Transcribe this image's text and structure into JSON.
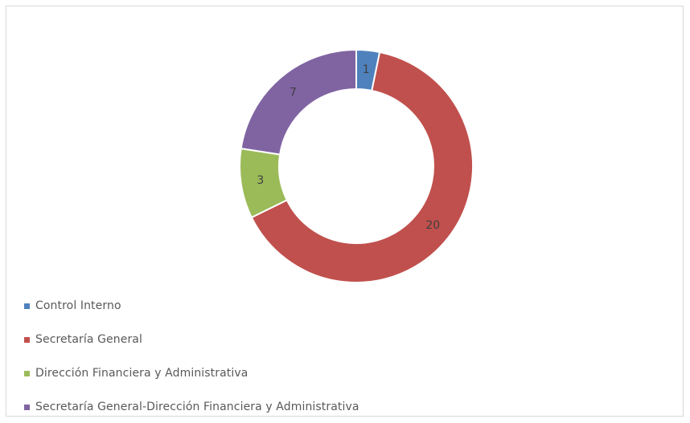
{
  "chart_data": {
    "type": "pie",
    "donut": true,
    "categories": [
      "Control Interno",
      "Secretaría General",
      "Dirección Financiera y Administrativa",
      "Secretaría General-Dirección Financiera y Administrativa"
    ],
    "values": [
      1,
      20,
      3,
      7
    ],
    "data_labels": [
      "1",
      "20",
      "3",
      "7"
    ],
    "colors": [
      "#4f81bd",
      "#c0504d",
      "#9bbb59",
      "#8064a2"
    ],
    "legend_position": "bottom-left"
  }
}
